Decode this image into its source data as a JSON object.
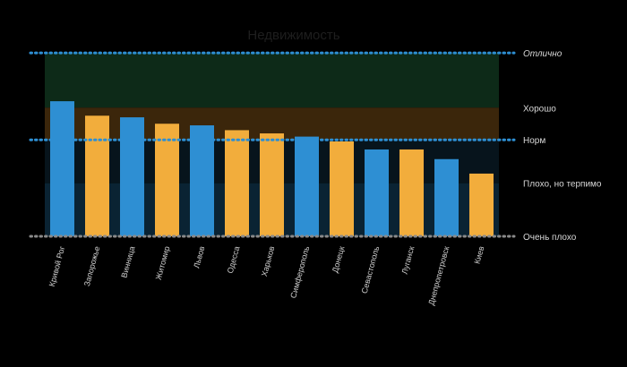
{
  "chart_data": {
    "type": "bar",
    "title": "Недвижимость",
    "categories": [
      "Кривой Рог",
      "Запорожье",
      "Винница",
      "Житомир",
      "Львов",
      "Одесса",
      "Харьков",
      "Симферополь",
      "Донецк",
      "Севастополь",
      "Луганск",
      "Днепропетровск",
      "Киев"
    ],
    "values": [
      84,
      75,
      74,
      70,
      69,
      66,
      64,
      62,
      59,
      54,
      54,
      48,
      39
    ],
    "bar_colors": [
      "#2e8fd3",
      "#f2ad3c",
      "#2e8fd3",
      "#f2ad3c",
      "#2e8fd3",
      "#f2ad3c",
      "#f2ad3c",
      "#2e8fd3",
      "#f2ad3c",
      "#2e8fd3",
      "#f2ad3c",
      "#2e8fd3",
      "#f2ad3c"
    ],
    "ylim": [
      0,
      118
    ],
    "reference_lines": [
      {
        "label": "Отлично",
        "value": 114,
        "color": "#2e8fd3",
        "italic": true
      },
      {
        "label": "Норм",
        "value": 60,
        "color": "#2e8fd3",
        "italic": false
      },
      {
        "label": "Очень плохо",
        "value": 0,
        "color": "#8a8a8a",
        "italic": false
      }
    ],
    "band_labels": [
      {
        "label": "Хорошо",
        "value": 80
      },
      {
        "label": "Плохо, но терпимо",
        "value": 33
      }
    ],
    "bands": [
      {
        "from": 80,
        "to": 114,
        "color": "#0d2a18"
      },
      {
        "from": 60,
        "to": 80,
        "color": "#3b260b"
      },
      {
        "from": 33,
        "to": 60,
        "color": "#07141c"
      },
      {
        "from": 0,
        "to": 33,
        "color": "#0a2333"
      }
    ],
    "grid": false,
    "legend": "none"
  }
}
